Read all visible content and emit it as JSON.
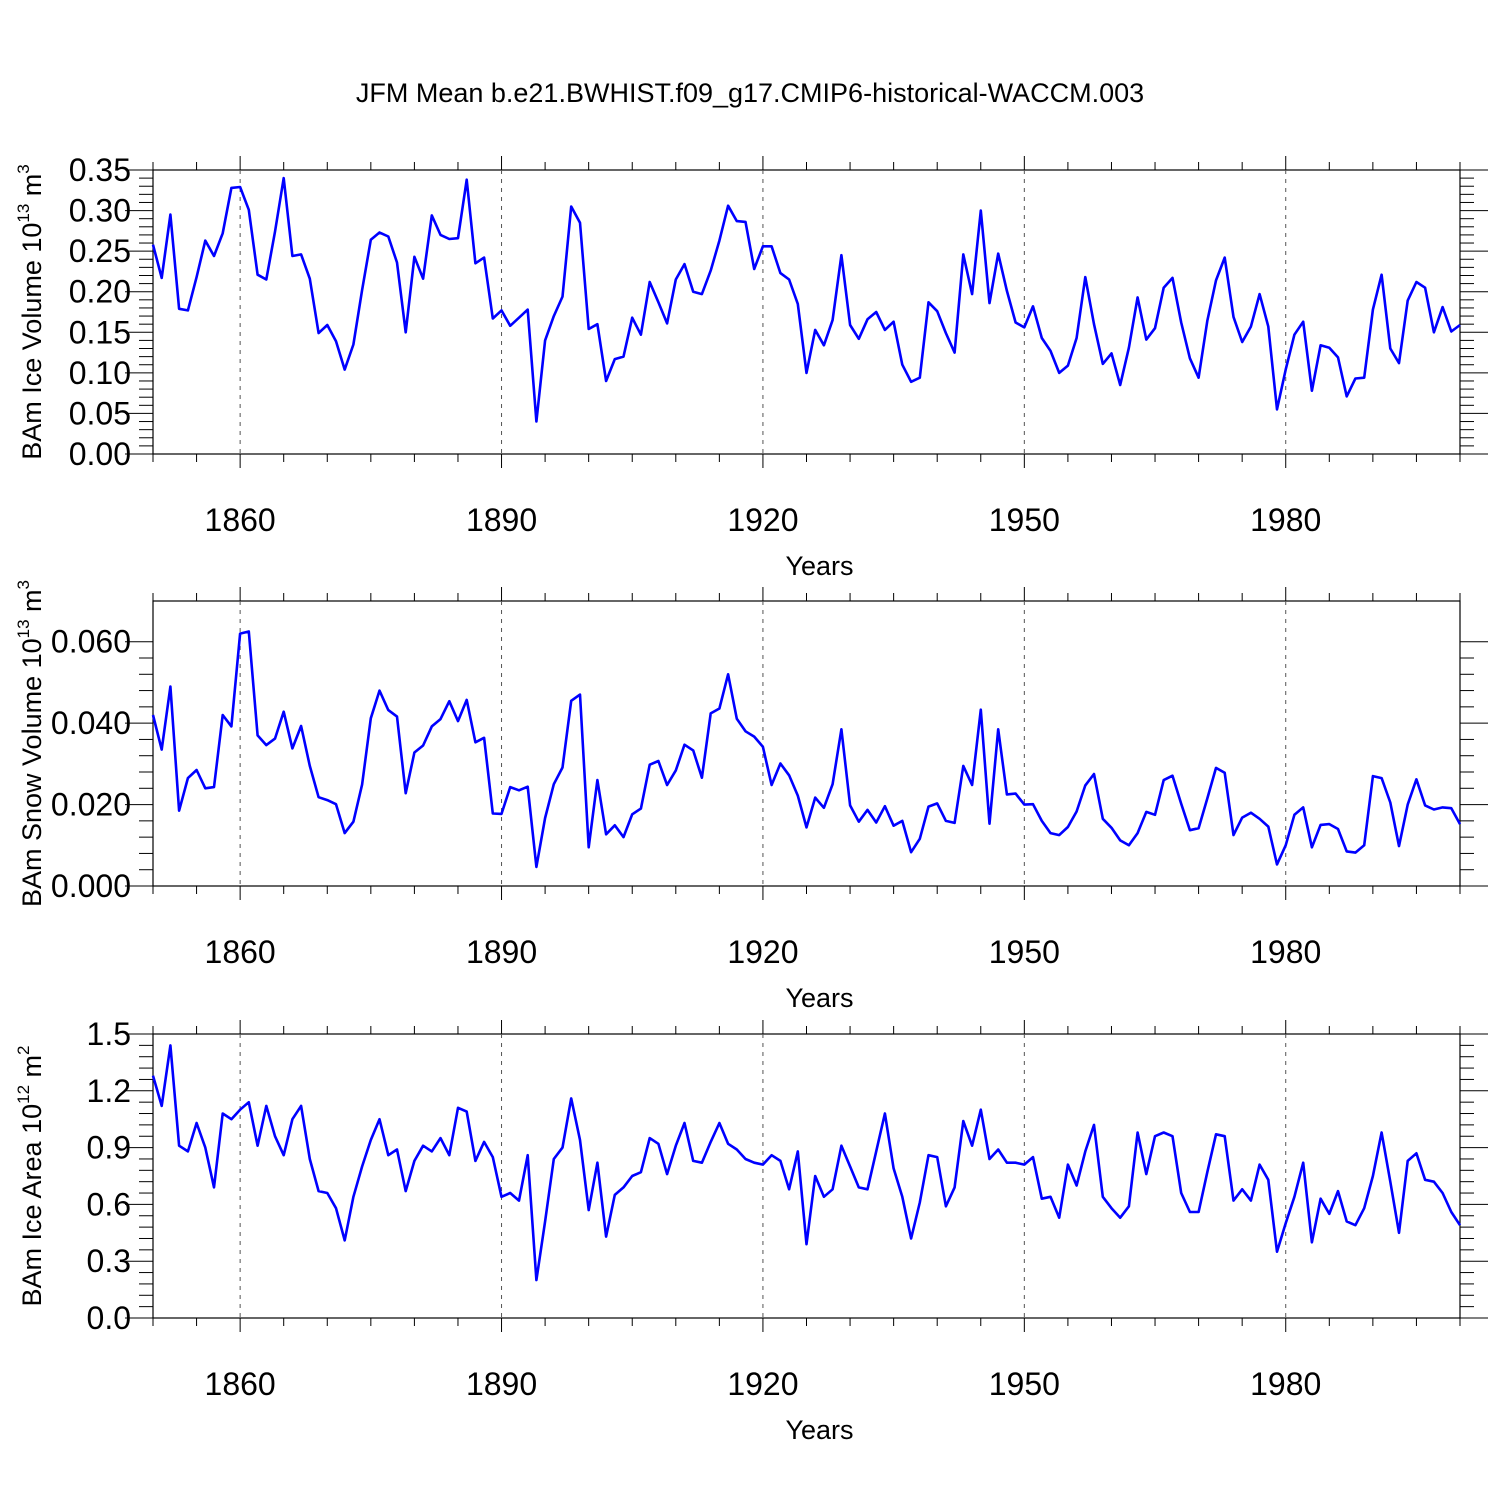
{
  "title": "JFM Mean b.e21.BWHIST.f09_g17.CMIP6-historical-WACCM.003",
  "chart_data": [
    {
      "type": "line",
      "xlabel": "Years",
      "ylabel": {
        "main": "BAm Ice Volume 10",
        "exp": "13",
        "unit": " m",
        "unit_exp": "3"
      },
      "xlim": [
        1850,
        2000
      ],
      "ylim": [
        0,
        0.35
      ],
      "yticks": [
        0,
        0.05,
        0.1,
        0.15,
        0.2,
        0.25,
        0.3,
        0.35
      ],
      "ytick_labels": [
        "0.00",
        "0.05",
        "0.10",
        "0.15",
        "0.20",
        "0.25",
        "0.30",
        "0.35"
      ],
      "xticks": [
        1860,
        1890,
        1920,
        1950,
        1980
      ],
      "xtick_labels": [
        "1860",
        "1890",
        "1920",
        "1950",
        "1980"
      ],
      "start_year": 1850,
      "line_color": "#0000ff",
      "values": [
        0.258,
        0.217,
        0.295,
        0.179,
        0.177,
        0.218,
        0.263,
        0.244,
        0.272,
        0.328,
        0.329,
        0.301,
        0.221,
        0.215,
        0.274,
        0.34,
        0.244,
        0.246,
        0.216,
        0.149,
        0.159,
        0.139,
        0.104,
        0.135,
        0.202,
        0.264,
        0.273,
        0.268,
        0.236,
        0.15,
        0.243,
        0.216,
        0.294,
        0.27,
        0.265,
        0.266,
        0.338,
        0.235,
        0.242,
        0.167,
        0.177,
        0.158,
        0.168,
        0.178,
        0.04,
        0.14,
        0.17,
        0.194,
        0.305,
        0.285,
        0.154,
        0.16,
        0.09,
        0.117,
        0.12,
        0.168,
        0.147,
        0.212,
        0.187,
        0.161,
        0.215,
        0.234,
        0.2,
        0.197,
        0.226,
        0.263,
        0.306,
        0.287,
        0.286,
        0.228,
        0.256,
        0.256,
        0.223,
        0.215,
        0.185,
        0.1,
        0.153,
        0.134,
        0.165,
        0.245,
        0.159,
        0.142,
        0.166,
        0.175,
        0.153,
        0.163,
        0.11,
        0.089,
        0.094,
        0.187,
        0.176,
        0.149,
        0.125,
        0.246,
        0.197,
        0.3,
        0.186,
        0.247,
        0.201,
        0.162,
        0.156,
        0.182,
        0.143,
        0.127,
        0.1,
        0.109,
        0.143,
        0.218,
        0.16,
        0.111,
        0.124,
        0.085,
        0.131,
        0.193,
        0.141,
        0.155,
        0.205,
        0.217,
        0.162,
        0.118,
        0.094,
        0.164,
        0.214,
        0.242,
        0.169,
        0.138,
        0.157,
        0.197,
        0.157,
        0.055,
        0.104,
        0.147,
        0.163,
        0.078,
        0.134,
        0.131,
        0.119,
        0.071,
        0.093,
        0.094,
        0.178,
        0.221,
        0.13,
        0.112,
        0.189,
        0.212,
        0.205,
        0.15,
        0.181,
        0.151,
        0.159
      ]
    },
    {
      "type": "line",
      "xlabel": "Years",
      "ylabel": {
        "main": "BAm Snow Volume 10",
        "exp": "13",
        "unit": " m",
        "unit_exp": "3"
      },
      "xlim": [
        1850,
        2000
      ],
      "ylim": [
        0,
        0.07
      ],
      "yticks": [
        0,
        0.02,
        0.04,
        0.06
      ],
      "ytick_labels": [
        "0.000",
        "0.020",
        "0.040",
        "0.060"
      ],
      "xticks": [
        1860,
        1890,
        1920,
        1950,
        1980
      ],
      "xtick_labels": [
        "1860",
        "1890",
        "1920",
        "1950",
        "1980"
      ],
      "start_year": 1850,
      "line_color": "#0000ff",
      "values": [
        0.042,
        0.0335,
        0.049,
        0.0185,
        0.0265,
        0.0285,
        0.024,
        0.0243,
        0.042,
        0.0392,
        0.062,
        0.0625,
        0.037,
        0.0346,
        0.0362,
        0.0428,
        0.0338,
        0.0393,
        0.0295,
        0.0218,
        0.0211,
        0.0201,
        0.013,
        0.0158,
        0.0249,
        0.0412,
        0.048,
        0.0432,
        0.0416,
        0.0228,
        0.0328,
        0.0345,
        0.0392,
        0.041,
        0.0454,
        0.0405,
        0.0457,
        0.0353,
        0.0364,
        0.0178,
        0.0177,
        0.0243,
        0.0235,
        0.0244,
        0.0047,
        0.0167,
        0.025,
        0.0291,
        0.0455,
        0.047,
        0.0095,
        0.026,
        0.0127,
        0.0149,
        0.012,
        0.0176,
        0.019,
        0.0298,
        0.0307,
        0.0248,
        0.0284,
        0.0347,
        0.0333,
        0.0266,
        0.0424,
        0.0436,
        0.052,
        0.0411,
        0.038,
        0.0367,
        0.0342,
        0.0248,
        0.0301,
        0.0272,
        0.0222,
        0.0144,
        0.0217,
        0.0192,
        0.025,
        0.0385,
        0.0198,
        0.0158,
        0.0187,
        0.0156,
        0.0196,
        0.0148,
        0.016,
        0.0083,
        0.0116,
        0.0195,
        0.0203,
        0.016,
        0.0155,
        0.0295,
        0.0248,
        0.0433,
        0.0153,
        0.0385,
        0.0225,
        0.0227,
        0.02,
        0.0201,
        0.016,
        0.013,
        0.0125,
        0.0145,
        0.0183,
        0.0247,
        0.0275,
        0.0165,
        0.0143,
        0.0112,
        0.01,
        0.013,
        0.0182,
        0.0175,
        0.026,
        0.0271,
        0.0202,
        0.0137,
        0.0142,
        0.0215,
        0.029,
        0.0278,
        0.0125,
        0.0168,
        0.018,
        0.0165,
        0.0146,
        0.0053,
        0.01,
        0.0175,
        0.0193,
        0.0095,
        0.015,
        0.0152,
        0.014,
        0.0085,
        0.0082,
        0.01,
        0.027,
        0.0265,
        0.0205,
        0.0098,
        0.02,
        0.0262,
        0.0198,
        0.0188,
        0.0193,
        0.0191,
        0.0152
      ]
    },
    {
      "type": "line",
      "xlabel": "Years",
      "ylabel": {
        "main": "BAm Ice Area 10",
        "exp": "12",
        "unit": " m",
        "unit_exp": "2"
      },
      "xlim": [
        1850,
        2000
      ],
      "ylim": [
        0,
        1.5
      ],
      "yticks": [
        0,
        0.3,
        0.6,
        0.9,
        1.2,
        1.5
      ],
      "ytick_labels": [
        "0.0",
        "0.3",
        "0.6",
        "0.9",
        "1.2",
        "1.5"
      ],
      "xticks": [
        1860,
        1890,
        1920,
        1950,
        1980
      ],
      "xtick_labels": [
        "1860",
        "1890",
        "1920",
        "1950",
        "1980"
      ],
      "start_year": 1850,
      "line_color": "#0000ff",
      "values": [
        1.28,
        1.12,
        1.44,
        0.91,
        0.88,
        1.03,
        0.9,
        0.69,
        1.08,
        1.05,
        1.1,
        1.14,
        0.91,
        1.12,
        0.96,
        0.86,
        1.05,
        1.12,
        0.84,
        0.67,
        0.66,
        0.58,
        0.41,
        0.64,
        0.8,
        0.94,
        1.05,
        0.86,
        0.89,
        0.67,
        0.83,
        0.91,
        0.88,
        0.95,
        0.86,
        1.11,
        1.09,
        0.83,
        0.93,
        0.85,
        0.64,
        0.66,
        0.62,
        0.86,
        0.2,
        0.51,
        0.84,
        0.9,
        1.16,
        0.94,
        0.57,
        0.82,
        0.43,
        0.65,
        0.69,
        0.75,
        0.77,
        0.95,
        0.92,
        0.76,
        0.91,
        1.03,
        0.83,
        0.82,
        0.93,
        1.03,
        0.92,
        0.89,
        0.84,
        0.82,
        0.81,
        0.86,
        0.83,
        0.68,
        0.88,
        0.39,
        0.75,
        0.64,
        0.68,
        0.91,
        0.8,
        0.69,
        0.68,
        0.88,
        1.08,
        0.79,
        0.64,
        0.42,
        0.61,
        0.86,
        0.85,
        0.59,
        0.69,
        1.04,
        0.91,
        1.1,
        0.84,
        0.89,
        0.82,
        0.82,
        0.81,
        0.85,
        0.63,
        0.64,
        0.53,
        0.81,
        0.7,
        0.88,
        1.02,
        0.64,
        0.58,
        0.53,
        0.59,
        0.98,
        0.76,
        0.96,
        0.98,
        0.96,
        0.66,
        0.56,
        0.56,
        0.77,
        0.97,
        0.96,
        0.62,
        0.68,
        0.62,
        0.81,
        0.73,
        0.35,
        0.5,
        0.64,
        0.82,
        0.4,
        0.63,
        0.55,
        0.67,
        0.51,
        0.49,
        0.58,
        0.75,
        0.98,
        0.72,
        0.45,
        0.83,
        0.87,
        0.73,
        0.72,
        0.66,
        0.56,
        0.49
      ]
    }
  ]
}
